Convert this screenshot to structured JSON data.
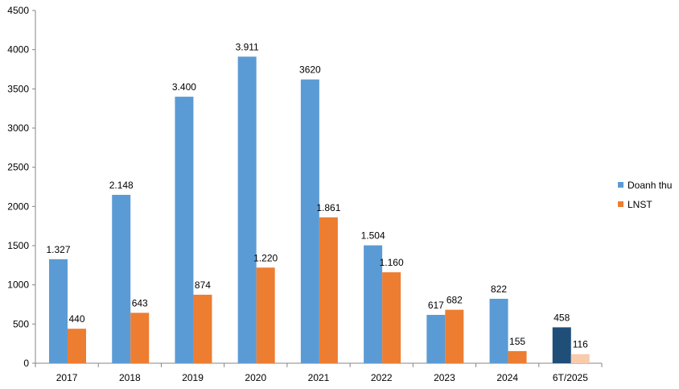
{
  "chart_data": {
    "type": "bar",
    "categories": [
      "2017",
      "2018",
      "2019",
      "2020",
      "2021",
      "2022",
      "2023",
      "2024",
      "6T/2025"
    ],
    "series": [
      {
        "name": "Doanh thu",
        "color": "#5B9BD5",
        "highlight_color": "#1F4E79",
        "values": [
          1327,
          2148,
          3400,
          3911,
          3620,
          1504,
          617,
          822,
          458
        ],
        "labels": [
          "1.327",
          "2.148",
          "3.400",
          "3.911",
          "3620",
          "1.504",
          "617",
          "822",
          "458"
        ]
      },
      {
        "name": "LNST",
        "color": "#ED7D31",
        "highlight_color": "#F8CBAD",
        "values": [
          440,
          643,
          874,
          1220,
          1861,
          1160,
          682,
          155,
          116
        ],
        "labels": [
          "440",
          "643",
          "874",
          "1.220",
          "1.861",
          "1.160",
          "682",
          "155",
          "116"
        ]
      }
    ],
    "highlight_category": "6T/2025",
    "yticks": [
      "0",
      "500",
      "1000",
      "1500",
      "2000",
      "2500",
      "3000",
      "3500",
      "4000",
      "4500"
    ],
    "ylim": [
      0,
      4500
    ],
    "grid": false,
    "legend_position": "right"
  }
}
